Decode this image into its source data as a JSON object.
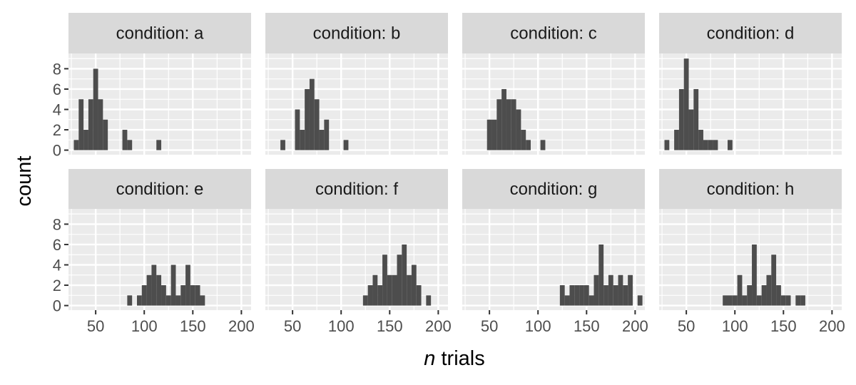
{
  "chart_data": {
    "type": "bar",
    "subtype": "faceted-histogram",
    "xlabel_italic": "n",
    "xlabel_rest": " trials",
    "ylabel": "count",
    "x_ticks": [
      50,
      100,
      150,
      200
    ],
    "y_ticks": [
      0,
      2,
      4,
      6,
      8
    ],
    "xlim": [
      22,
      210
    ],
    "ylim": [
      -0.45,
      9.5
    ],
    "bin_width": 5,
    "grid": true,
    "panel_bg": "#ebebeb",
    "strip_bg": "#d9d9d9",
    "bar_color": "#4d4d4d",
    "facet_label_prefix": "condition: ",
    "facets": [
      {
        "name": "a",
        "bins": [
          [
            30,
            1
          ],
          [
            35,
            5
          ],
          [
            40,
            2
          ],
          [
            45,
            5
          ],
          [
            50,
            8
          ],
          [
            55,
            5
          ],
          [
            60,
            3
          ],
          [
            80,
            2
          ],
          [
            85,
            1
          ],
          [
            115,
            1
          ]
        ]
      },
      {
        "name": "b",
        "bins": [
          [
            40,
            1
          ],
          [
            55,
            4
          ],
          [
            60,
            2
          ],
          [
            65,
            6
          ],
          [
            70,
            7
          ],
          [
            75,
            5
          ],
          [
            80,
            2
          ],
          [
            85,
            3
          ],
          [
            105,
            1
          ]
        ]
      },
      {
        "name": "c",
        "bins": [
          [
            50,
            3
          ],
          [
            55,
            3
          ],
          [
            60,
            5
          ],
          [
            65,
            6
          ],
          [
            70,
            5
          ],
          [
            75,
            5
          ],
          [
            80,
            4
          ],
          [
            85,
            2
          ],
          [
            90,
            1
          ],
          [
            105,
            1
          ]
        ]
      },
      {
        "name": "d",
        "bins": [
          [
            30,
            1
          ],
          [
            40,
            2
          ],
          [
            45,
            6
          ],
          [
            50,
            9
          ],
          [
            55,
            4
          ],
          [
            60,
            6
          ],
          [
            65,
            2
          ],
          [
            70,
            1
          ],
          [
            75,
            1
          ],
          [
            80,
            1
          ],
          [
            95,
            1
          ]
        ]
      },
      {
        "name": "e",
        "bins": [
          [
            85,
            1
          ],
          [
            95,
            1
          ],
          [
            100,
            2
          ],
          [
            105,
            3
          ],
          [
            110,
            4
          ],
          [
            115,
            3
          ],
          [
            120,
            2
          ],
          [
            125,
            1
          ],
          [
            130,
            4
          ],
          [
            135,
            1
          ],
          [
            140,
            2
          ],
          [
            145,
            4
          ],
          [
            150,
            2
          ],
          [
            155,
            2
          ],
          [
            160,
            1
          ]
        ]
      },
      {
        "name": "f",
        "bins": [
          [
            125,
            1
          ],
          [
            130,
            2
          ],
          [
            135,
            3
          ],
          [
            140,
            2
          ],
          [
            145,
            5
          ],
          [
            150,
            3
          ],
          [
            155,
            3
          ],
          [
            160,
            5
          ],
          [
            165,
            6
          ],
          [
            170,
            3
          ],
          [
            175,
            4
          ],
          [
            180,
            2
          ],
          [
            190,
            1
          ]
        ]
      },
      {
        "name": "g",
        "bins": [
          [
            125,
            2
          ],
          [
            130,
            1
          ],
          [
            135,
            2
          ],
          [
            140,
            2
          ],
          [
            145,
            2
          ],
          [
            150,
            2
          ],
          [
            155,
            1
          ],
          [
            160,
            3
          ],
          [
            165,
            6
          ],
          [
            170,
            2
          ],
          [
            175,
            3
          ],
          [
            180,
            2
          ],
          [
            185,
            3
          ],
          [
            190,
            2
          ],
          [
            195,
            3
          ],
          [
            205,
            1
          ]
        ]
      },
      {
        "name": "h",
        "bins": [
          [
            90,
            1
          ],
          [
            95,
            1
          ],
          [
            100,
            1
          ],
          [
            105,
            3
          ],
          [
            110,
            1
          ],
          [
            115,
            2
          ],
          [
            120,
            6
          ],
          [
            125,
            1
          ],
          [
            130,
            2
          ],
          [
            135,
            3
          ],
          [
            140,
            5
          ],
          [
            145,
            2
          ],
          [
            150,
            1
          ],
          [
            155,
            1
          ],
          [
            165,
            1
          ],
          [
            170,
            1
          ]
        ]
      }
    ]
  }
}
